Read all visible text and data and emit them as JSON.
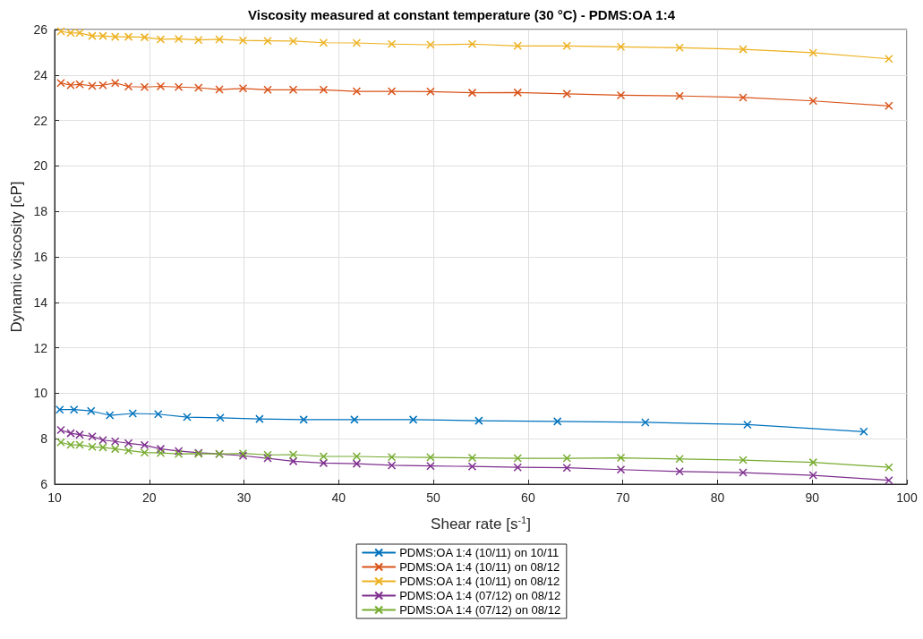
{
  "chart_data": {
    "type": "line",
    "title": "Viscosity measured at constant temperature (30 °C) - PDMS:OA 1:4",
    "xlabel": "Shear rate [s$^{-1}$]",
    "ylabel": "Dynamic viscosity [cP]",
    "xlim": [
      10,
      100
    ],
    "xticks": [
      10,
      20,
      30,
      40,
      50,
      60,
      70,
      80,
      90,
      100
    ],
    "ylim": [
      6,
      26
    ],
    "yticks": [
      6,
      8,
      10,
      12,
      14,
      16,
      18,
      20,
      22,
      24,
      26
    ],
    "grid": true,
    "legend": "bottom",
    "marker": "cross",
    "line_style": "solid",
    "series": [
      {
        "name": "PDMS:OA 1:4 (10/11) on 10/11",
        "color": "#0072bd",
        "x": [
          10.54,
          12.05,
          13.85,
          15.83,
          18.25,
          20.94,
          23.99,
          27.49,
          31.64,
          36.3,
          41.66,
          47.87,
          54.8,
          63.1,
          72.38,
          83.16,
          95.45
        ],
        "values": [
          9.28,
          9.28,
          9.22,
          9.03,
          9.11,
          9.08,
          8.95,
          8.92,
          8.87,
          8.84,
          8.84,
          8.84,
          8.79,
          8.76,
          8.72,
          8.62,
          8.31
        ]
      },
      {
        "name": "PDMS:OA 1:4 (10/11) on 08/12",
        "color": "#d95319",
        "x": [
          10.66,
          11.7,
          12.65,
          13.97,
          15.1,
          16.4,
          17.8,
          19.5,
          21.2,
          23.1,
          25.2,
          27.4,
          29.9,
          32.5,
          35.2,
          38.4,
          41.9,
          45.6,
          49.7,
          54.1,
          58.9,
          64.1,
          69.8,
          76.0,
          82.7,
          90.1,
          98.1
        ],
        "values": [
          23.65,
          23.55,
          23.59,
          23.52,
          23.55,
          23.65,
          23.49,
          23.47,
          23.5,
          23.47,
          23.44,
          23.36,
          23.41,
          23.35,
          23.35,
          23.35,
          23.28,
          23.28,
          23.27,
          23.22,
          23.23,
          23.17,
          23.11,
          23.08,
          23.01,
          22.86,
          22.64
        ]
      },
      {
        "name": "PDMS:OA 1:4 (10/11) on 08/12",
        "color": "#edb120",
        "x": [
          10.66,
          11.7,
          12.65,
          13.97,
          15.1,
          16.4,
          17.8,
          19.5,
          21.2,
          23.1,
          25.2,
          27.4,
          29.9,
          32.5,
          35.2,
          38.4,
          41.9,
          45.6,
          49.7,
          54.1,
          58.9,
          64.1,
          69.8,
          76.0,
          82.7,
          90.1,
          98.1
        ],
        "values": [
          25.92,
          25.85,
          25.85,
          25.72,
          25.72,
          25.68,
          25.68,
          25.66,
          25.57,
          25.59,
          25.54,
          25.57,
          25.52,
          25.5,
          25.49,
          25.42,
          25.41,
          25.36,
          25.33,
          25.36,
          25.28,
          25.28,
          25.24,
          25.2,
          25.13,
          24.98,
          24.71
        ]
      },
      {
        "name": "PDMS:OA 1:4 (07/12) on 08/12",
        "color": "#7e2f8e",
        "x": [
          10.66,
          11.7,
          12.65,
          13.97,
          15.1,
          16.4,
          17.8,
          19.5,
          21.2,
          23.1,
          25.2,
          27.4,
          29.9,
          32.5,
          35.2,
          38.4,
          41.9,
          45.6,
          49.7,
          54.1,
          58.9,
          64.1,
          69.8,
          76.0,
          82.7,
          90.1,
          98.1
        ],
        "values": [
          8.38,
          8.24,
          8.18,
          8.1,
          7.94,
          7.88,
          7.8,
          7.72,
          7.55,
          7.46,
          7.38,
          7.33,
          7.25,
          7.14,
          7.01,
          6.93,
          6.9,
          6.83,
          6.8,
          6.78,
          6.74,
          6.72,
          6.64,
          6.56,
          6.51,
          6.39,
          6.17
        ]
      },
      {
        "name": "PDMS:OA 1:4 (07/12) on 08/12",
        "color": "#77ac30",
        "x": [
          10.66,
          11.7,
          12.65,
          13.97,
          15.1,
          16.4,
          17.8,
          19.5,
          21.2,
          23.1,
          25.2,
          27.4,
          29.9,
          32.5,
          35.2,
          38.4,
          41.9,
          45.6,
          49.7,
          54.1,
          58.9,
          64.1,
          69.8,
          76.0,
          82.7,
          90.1,
          98.1
        ],
        "values": [
          7.84,
          7.73,
          7.73,
          7.64,
          7.62,
          7.55,
          7.48,
          7.39,
          7.37,
          7.33,
          7.34,
          7.33,
          7.35,
          7.29,
          7.3,
          7.22,
          7.22,
          7.19,
          7.18,
          7.16,
          7.14,
          7.14,
          7.16,
          7.11,
          7.06,
          6.96,
          6.74
        ]
      }
    ]
  }
}
